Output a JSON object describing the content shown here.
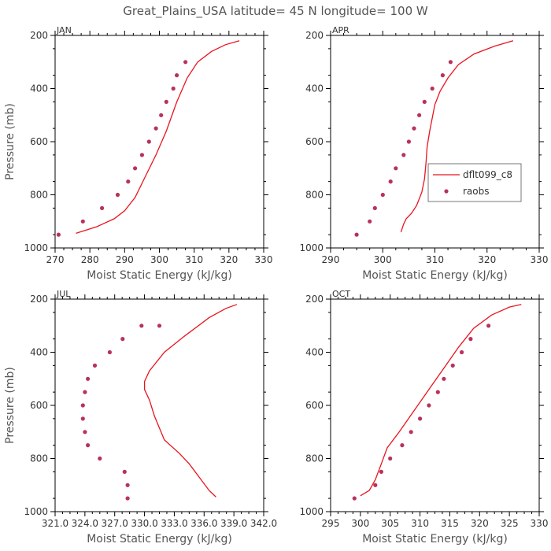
{
  "title": "Great_Plains_USA   latitude= 45 N longitude= 100 W",
  "colors": {
    "model": "#e8141e",
    "obs": "#b8325a",
    "axis": "#000000",
    "text": "#555555"
  },
  "legend": {
    "panel": "APR",
    "model_label": "dflt099_c8",
    "obs_label": "raobs",
    "position": "center-right"
  },
  "chart_data": [
    {
      "type": "line",
      "panel": "JAN",
      "xlabel": "Moist Static Energy (kJ/kg)",
      "ylabel": "Pressure (mb)",
      "xlim": [
        270,
        330
      ],
      "ylim": [
        1000,
        200
      ],
      "xticks": [
        "270",
        "280",
        "290",
        "300",
        "310",
        "320",
        "330"
      ],
      "yticks": [
        "200",
        "400",
        "600",
        "800",
        "1000"
      ],
      "series": [
        {
          "name": "dflt099_c8",
          "kind": "line",
          "x": [
            276,
            282,
            287,
            290,
            293,
            296,
            299,
            302,
            305,
            308,
            311,
            315,
            319,
            323
          ],
          "y": [
            945,
            920,
            890,
            860,
            810,
            730,
            650,
            560,
            450,
            360,
            300,
            260,
            235,
            220
          ]
        },
        {
          "name": "raobs",
          "kind": "points",
          "x": [
            271,
            278,
            283.5,
            288,
            291,
            293,
            295,
            297,
            299,
            300.5,
            302,
            304,
            305,
            307.5
          ],
          "y": [
            950,
            900,
            850,
            800,
            750,
            700,
            650,
            600,
            550,
            500,
            450,
            400,
            350,
            300
          ]
        }
      ]
    },
    {
      "type": "line",
      "panel": "APR",
      "xlabel": "Moist Static Energy (kJ/kg)",
      "ylabel": "",
      "xlim": [
        290,
        330
      ],
      "ylim": [
        1000,
        200
      ],
      "xticks": [
        "290",
        "300",
        "310",
        "320",
        "330"
      ],
      "yticks": [
        "200",
        "400",
        "600",
        "800",
        "1000"
      ],
      "series": [
        {
          "name": "dflt099_c8",
          "kind": "line",
          "x": [
            303.5,
            304,
            304.5,
            305.5,
            306.5,
            307.5,
            308,
            308.3,
            308.5,
            309,
            309.5,
            310,
            311,
            312.5,
            314.5,
            317.5,
            321.5,
            325
          ],
          "y": [
            940,
            910,
            890,
            870,
            840,
            790,
            740,
            680,
            620,
            560,
            510,
            460,
            410,
            360,
            310,
            270,
            240,
            220
          ]
        },
        {
          "name": "raobs",
          "kind": "points",
          "x": [
            295,
            297.5,
            298.5,
            300,
            301.5,
            302.5,
            304,
            305,
            306,
            307,
            308,
            309.5,
            311.5,
            313
          ],
          "y": [
            950,
            900,
            850,
            800,
            750,
            700,
            650,
            600,
            550,
            500,
            450,
            400,
            350,
            300
          ]
        }
      ]
    },
    {
      "type": "line",
      "panel": "JUL",
      "xlabel": "Moist Static Energy (kJ/kg)",
      "ylabel": "Pressure (mb)",
      "xlim": [
        321,
        342
      ],
      "ylim": [
        1000,
        200
      ],
      "xticks": [
        "321.0",
        "324.0",
        "327.0",
        "330.0",
        "333.0",
        "336.0",
        "339.0",
        "342.0"
      ],
      "yticks": [
        "200",
        "400",
        "600",
        "800",
        "1000"
      ],
      "series": [
        {
          "name": "dflt099_c8",
          "kind": "line",
          "x": [
            337.2,
            336.5,
            335.5,
            334.5,
            333.5,
            332,
            331,
            330.5,
            330,
            330,
            330.5,
            332,
            334,
            336.5,
            338.2,
            339.3
          ],
          "y": [
            945,
            920,
            870,
            820,
            780,
            730,
            640,
            580,
            540,
            510,
            470,
            400,
            340,
            270,
            235,
            220
          ]
        },
        {
          "name": "raobs",
          "kind": "points",
          "x": [
            328.3,
            328.3,
            328,
            325.5,
            324.3,
            324,
            323.8,
            323.8,
            324,
            324.3,
            325,
            326.5,
            327.8,
            329.7,
            331.5
          ],
          "y": [
            950,
            900,
            850,
            800,
            750,
            700,
            650,
            600,
            550,
            500,
            450,
            400,
            350,
            300,
            300
          ]
        }
      ]
    },
    {
      "type": "line",
      "panel": "OCT",
      "xlabel": "Moist Static Energy (kJ/kg)",
      "ylabel": "",
      "xlim": [
        295,
        330
      ],
      "ylim": [
        1000,
        200
      ],
      "xticks": [
        "295",
        "300",
        "305",
        "310",
        "315",
        "320",
        "325",
        "330"
      ],
      "yticks": [
        "200",
        "400",
        "600",
        "800",
        "1000"
      ],
      "series": [
        {
          "name": "dflt099_c8",
          "kind": "line",
          "x": [
            300,
            301.5,
            302.5,
            303.5,
            304.5,
            306.5,
            309,
            311.5,
            314,
            316.5,
            319,
            322,
            325,
            327
          ],
          "y": [
            940,
            920,
            880,
            820,
            760,
            700,
            620,
            540,
            460,
            380,
            310,
            260,
            230,
            220
          ]
        },
        {
          "name": "raobs",
          "kind": "points",
          "x": [
            299,
            302.5,
            303.5,
            305,
            307,
            308.5,
            310,
            311.5,
            313,
            314,
            315.5,
            317,
            318.5,
            321.5
          ],
          "y": [
            950,
            900,
            850,
            800,
            750,
            700,
            650,
            600,
            550,
            500,
            450,
            400,
            350,
            300
          ]
        }
      ]
    }
  ]
}
